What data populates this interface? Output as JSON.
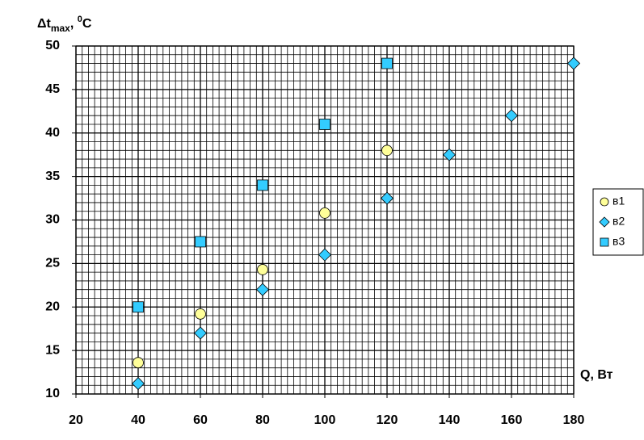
{
  "chart_data": {
    "type": "scatter",
    "y_label": [
      "Δt",
      "max",
      ", ",
      "0",
      "C"
    ],
    "x_label": "Q, Вт",
    "xlim": [
      20,
      180
    ],
    "xticks": [
      20,
      40,
      60,
      80,
      100,
      120,
      140,
      160,
      180
    ],
    "ylim": [
      10,
      50
    ],
    "yticks": [
      10,
      15,
      20,
      25,
      30,
      35,
      40,
      45,
      50
    ],
    "grid": true,
    "minor_grid": {
      "x": 2,
      "y": 1
    },
    "legend": "right",
    "series": [
      {
        "name": "в1",
        "color": "#ffff99",
        "marker": "circle",
        "x": [
          40,
          60,
          80,
          100,
          120
        ],
        "values": [
          13.6,
          19.2,
          24.3,
          30.8,
          38
        ]
      },
      {
        "name": "в2",
        "color": "#33ccff",
        "marker": "diamond",
        "x": [
          40,
          60,
          80,
          100,
          120,
          140,
          160,
          180
        ],
        "values": [
          11.2,
          17,
          22,
          26,
          32.5,
          37.5,
          42,
          48
        ]
      },
      {
        "name": "в3",
        "color": "#33ccff",
        "marker": "square",
        "x": [
          40,
          60,
          80,
          100,
          120
        ],
        "values": [
          20,
          27.5,
          34,
          41,
          48
        ]
      }
    ]
  }
}
